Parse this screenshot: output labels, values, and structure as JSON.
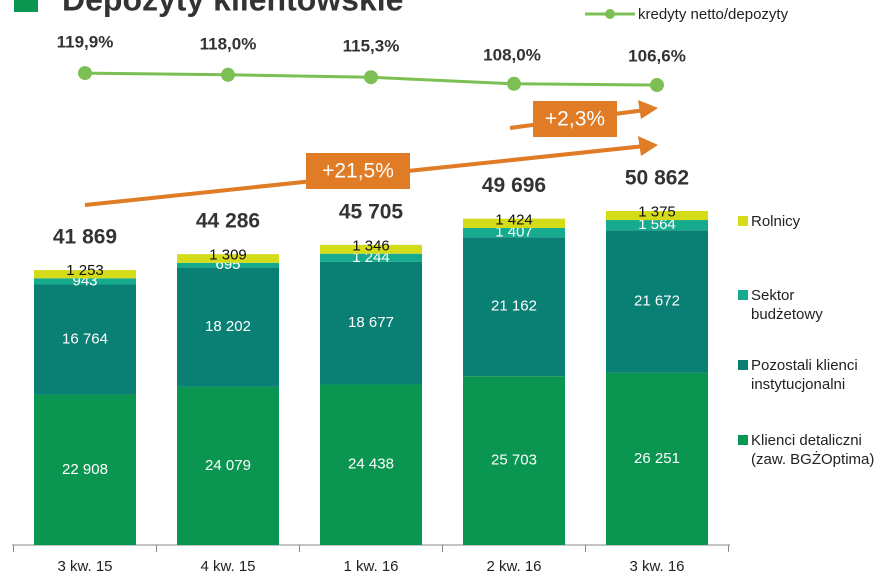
{
  "chart_data": {
    "type": "bar",
    "stacked": true,
    "title": "Depozyty klientowskie",
    "categories": [
      "3 kw. 15",
      "4 kw. 15",
      "1 kw. 16",
      "2 kw. 16",
      "3 kw. 16"
    ],
    "series": [
      {
        "name": "Klienci detaliczni (zaw. BGŻOptima)",
        "color": "#0a9650",
        "values": [
          22908,
          24079,
          24438,
          25703,
          26251
        ],
        "value_labels": [
          "22 908",
          "24 079",
          "24 438",
          "25 703",
          "26 251"
        ]
      },
      {
        "name": "Pozostali klienci instytucjonalni",
        "color": "#0a7f74",
        "values": [
          16764,
          18202,
          18677,
          21162,
          21672
        ],
        "value_labels": [
          "16 764",
          "18 202",
          "18 677",
          "21 162",
          "21 672"
        ]
      },
      {
        "name": "Sektor budżetowy",
        "color": "#16aa8e",
        "values": [
          943,
          695,
          1244,
          1407,
          1564
        ],
        "value_labels": [
          "943",
          "695",
          "1 244",
          "1 407",
          "1 564"
        ]
      },
      {
        "name": "Rolnicy",
        "color": "#d4dc1a",
        "values": [
          1253,
          1309,
          1346,
          1424,
          1375
        ],
        "value_labels": [
          "1 253",
          "1 309",
          "1 346",
          "1 424",
          "1 375"
        ]
      },
      {
        "name": "kredyty netto/depozyty",
        "type": "line",
        "axis": "y2",
        "color": "#7cbf52",
        "values": [
          119.9,
          118.0,
          115.3,
          108.0,
          106.6
        ],
        "value_labels": [
          "119,9%",
          "118,0%",
          "115,3%",
          "108,0%",
          "106,6%"
        ]
      }
    ],
    "totals": [
      41869,
      44286,
      45705,
      49696,
      50862
    ],
    "total_labels": [
      "41 869",
      "44 286",
      "45 705",
      "49 696",
      "50 862"
    ],
    "annotations": [
      "+21,5%",
      "+2,3%"
    ],
    "ylim": [
      0,
      60000
    ],
    "y2lim": [
      60,
      140
    ]
  }
}
